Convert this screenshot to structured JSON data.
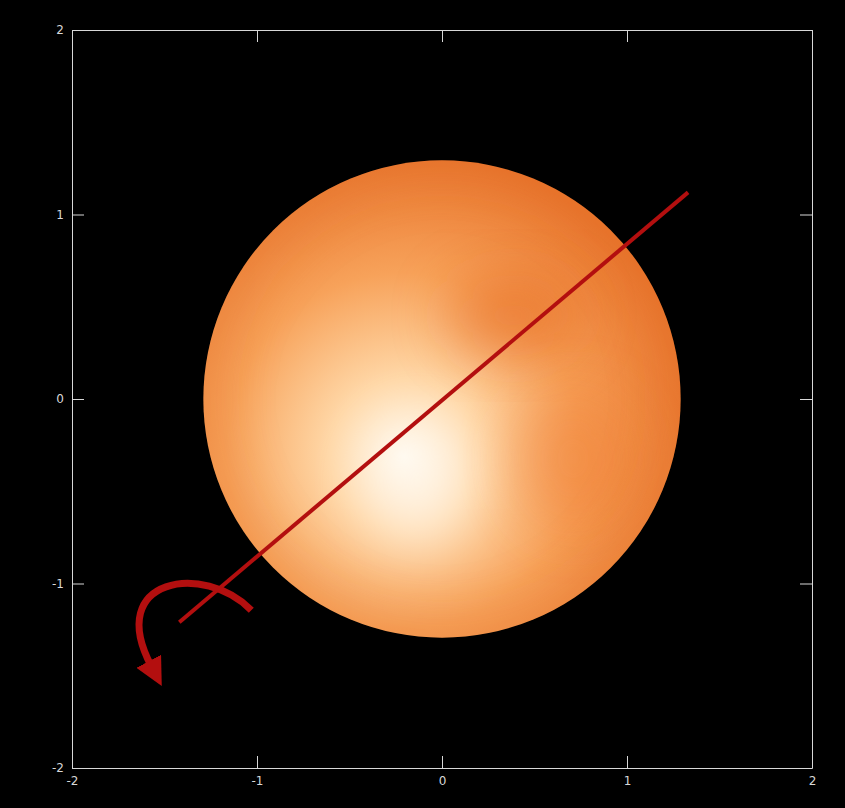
{
  "chart_data": {
    "type": "image",
    "xlim": [
      -2,
      2
    ],
    "ylim": [
      -2,
      2
    ],
    "xticks": [
      -2,
      -1,
      0,
      1,
      2
    ],
    "yticks": [
      -2,
      -1,
      0,
      1,
      2
    ],
    "disk": {
      "center": [
        0,
        0
      ],
      "radius": 1.29
    },
    "rotation_axis": {
      "x": [
        -1.42,
        1.33
      ],
      "y": [
        -1.21,
        1.12
      ]
    },
    "color": "#e8742c"
  }
}
